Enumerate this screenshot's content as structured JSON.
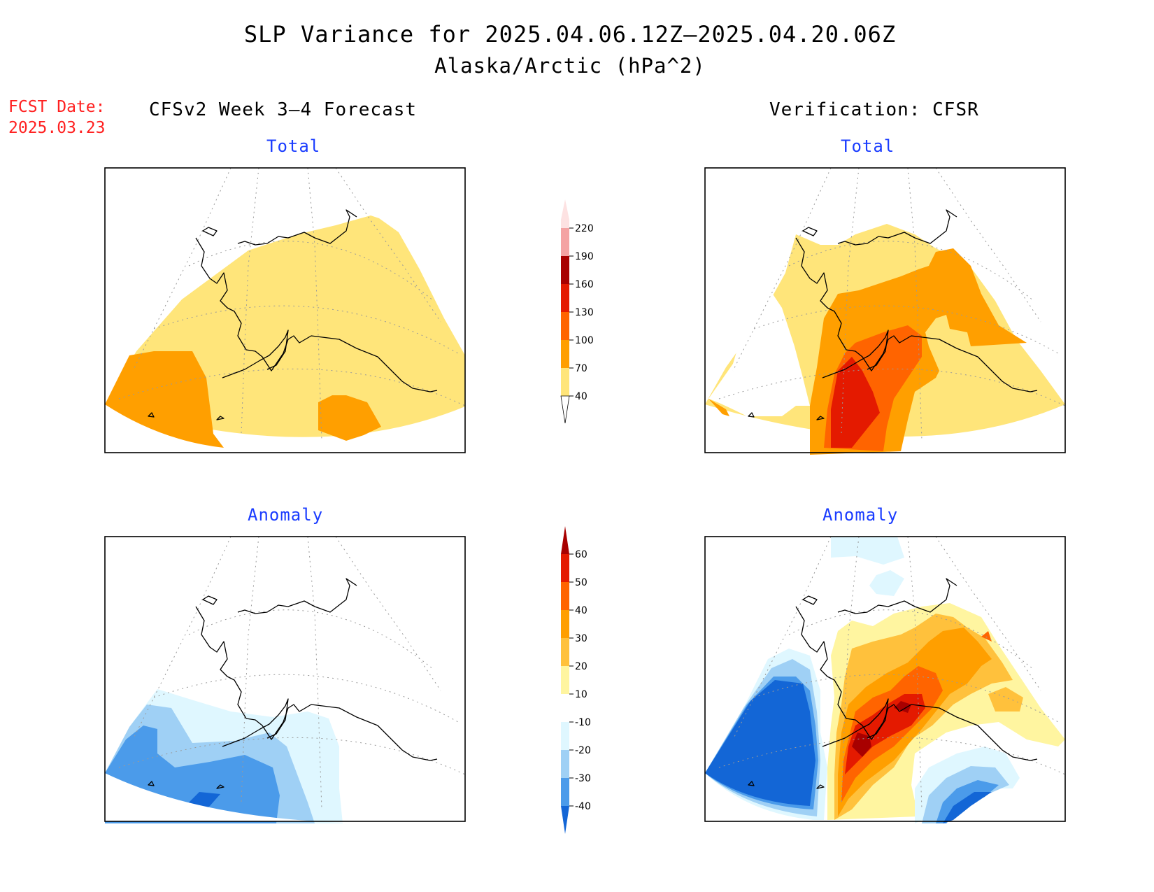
{
  "title": "SLP Variance for 2025.04.06.12Z—2025.04.20.06Z",
  "subtitle": "Alaska/Arctic (hPa^2)",
  "fcst_date": {
    "label": "FCST Date:",
    "value": "2025.03.23"
  },
  "left_heading": "CFSv2 Week 3—4 Forecast",
  "right_heading": "Verification: CFSR",
  "panels": {
    "forecast_total": {
      "title": "Total"
    },
    "verification_total": {
      "title": "Total"
    },
    "forecast_anomaly": {
      "title": "Anomaly"
    },
    "verification_anomaly": {
      "title": "Anomaly"
    }
  },
  "total_colorbar": {
    "labels": [
      "220",
      "190",
      "160",
      "130",
      "100",
      "70",
      "40"
    ],
    "colors": {
      "above_220": "#fde2e2",
      "190_220": "#f4a3a3",
      "160_190": "#a80000",
      "130_160": "#e41a00",
      "100_130": "#ff6400",
      "70_100": "#ff9f00",
      "40_70": "#ffe57a",
      "below_40": "#ffffff"
    }
  },
  "anomaly_colorbar": {
    "labels": [
      "60",
      "50",
      "40",
      "30",
      "20",
      "10",
      "-10",
      "-20",
      "-30",
      "-40"
    ],
    "colors": {
      "above_60": "#a80000",
      "50_60": "#e41a00",
      "40_50": "#ff6400",
      "30_40": "#ff9f00",
      "20_30": "#ffc13c",
      "10_20": "#fff5a0",
      "m10_10": "#ffffff",
      "m20_m10": "#dff7ff",
      "m30_m20": "#9fd0f5",
      "m40_m30": "#4b9bea",
      "below_m40": "#1366d6"
    }
  }
}
